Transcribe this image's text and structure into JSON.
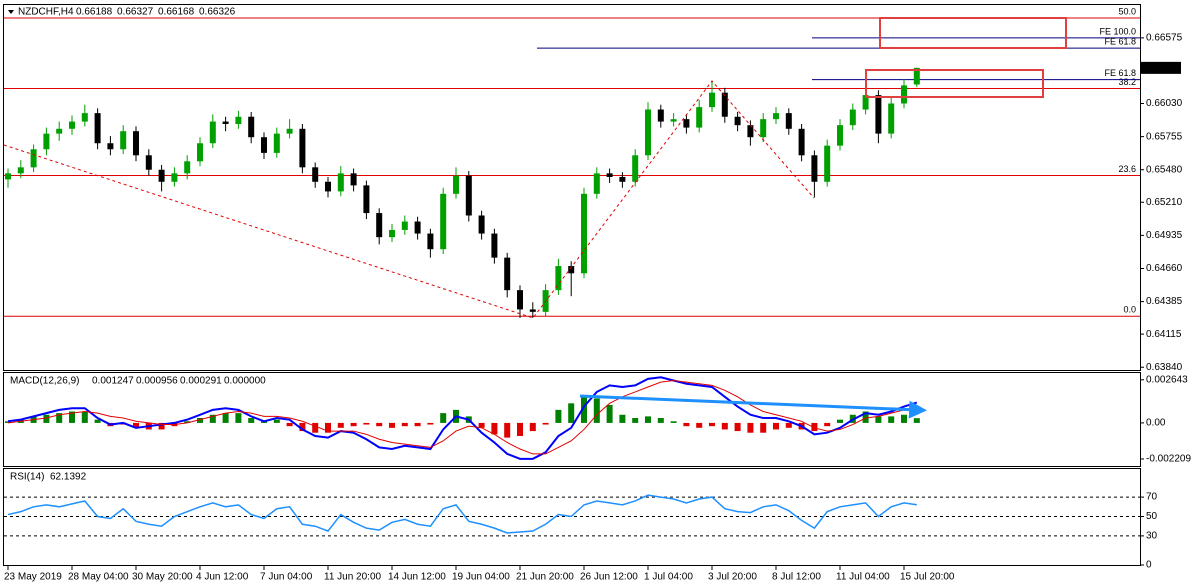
{
  "chart_data": [
    {
      "type": "candlestick",
      "title": "NZDCHF,H4",
      "categories": [
        "23 May 2019",
        null,
        null,
        null,
        null,
        "28 May 04:00",
        null,
        null,
        null,
        null,
        "30 May 20:00",
        null,
        null,
        null,
        null,
        "4 Jun 12:00",
        null,
        null,
        null,
        null,
        "7 Jun 04:00",
        null,
        null,
        null,
        null,
        "11 Jun 20:00",
        null,
        null,
        null,
        null,
        "14 Jun 12:00",
        null,
        null,
        null,
        null,
        "19 Jun 04:00",
        null,
        null,
        null,
        null,
        "21 Jun 20:00",
        null,
        null,
        null,
        null,
        "26 Jun 12:00",
        null,
        null,
        null,
        null,
        "1 Jul 04:00",
        null,
        null,
        null,
        null,
        "3 Jul 20:00",
        null,
        null,
        null,
        null,
        "8 Jul 12:00",
        null,
        null,
        null,
        null,
        "11 Jul 04:00",
        null,
        null,
        null,
        null,
        "15 Jul 20:00",
        null
      ],
      "ohlc": [
        [
          0.654,
          0.6549,
          0.6533,
          0.6545
        ],
        [
          0.6545,
          0.6556,
          0.6541,
          0.655
        ],
        [
          0.655,
          0.6569,
          0.6546,
          0.6565
        ],
        [
          0.6565,
          0.6583,
          0.656,
          0.6578
        ],
        [
          0.6578,
          0.6588,
          0.6572,
          0.6582
        ],
        [
          0.6582,
          0.6593,
          0.6577,
          0.6588
        ],
        [
          0.6588,
          0.6602,
          0.6584,
          0.6595
        ],
        [
          0.6595,
          0.6599,
          0.6565,
          0.657
        ],
        [
          0.657,
          0.6576,
          0.656,
          0.6565
        ],
        [
          0.6565,
          0.6585,
          0.6561,
          0.658
        ],
        [
          0.658,
          0.6584,
          0.6555,
          0.656
        ],
        [
          0.656,
          0.6565,
          0.6543,
          0.6548
        ],
        [
          0.6548,
          0.6552,
          0.653,
          0.6538
        ],
        [
          0.6538,
          0.655,
          0.6534,
          0.6545
        ],
        [
          0.6545,
          0.656,
          0.654,
          0.6555
        ],
        [
          0.6555,
          0.6575,
          0.6551,
          0.657
        ],
        [
          0.657,
          0.6594,
          0.6566,
          0.6588
        ],
        [
          0.6588,
          0.6592,
          0.658,
          0.6586
        ],
        [
          0.6586,
          0.6597,
          0.6582,
          0.6592
        ],
        [
          0.6592,
          0.6596,
          0.657,
          0.6575
        ],
        [
          0.6575,
          0.6579,
          0.6557,
          0.6562
        ],
        [
          0.6562,
          0.6583,
          0.6558,
          0.6578
        ],
        [
          0.6578,
          0.659,
          0.6574,
          0.6582
        ],
        [
          0.6582,
          0.6586,
          0.6545,
          0.655
        ],
        [
          0.655,
          0.6554,
          0.6533,
          0.6538
        ],
        [
          0.6538,
          0.6542,
          0.6525,
          0.653
        ],
        [
          0.653,
          0.6551,
          0.6526,
          0.6545
        ],
        [
          0.6545,
          0.6549,
          0.653,
          0.6535
        ],
        [
          0.6535,
          0.6539,
          0.6507,
          0.6512
        ],
        [
          0.6512,
          0.6516,
          0.6486,
          0.6492
        ],
        [
          0.6492,
          0.6503,
          0.6488,
          0.6498
        ],
        [
          0.6498,
          0.651,
          0.6494,
          0.6505
        ],
        [
          0.6505,
          0.6509,
          0.649,
          0.6495
        ],
        [
          0.6495,
          0.6499,
          0.6475,
          0.6482
        ],
        [
          0.6482,
          0.6533,
          0.6478,
          0.6528
        ],
        [
          0.6528,
          0.655,
          0.6524,
          0.6543
        ],
        [
          0.6543,
          0.6547,
          0.6505,
          0.651
        ],
        [
          0.651,
          0.6514,
          0.649,
          0.6495
        ],
        [
          0.6495,
          0.6499,
          0.647,
          0.6475
        ],
        [
          0.6475,
          0.6479,
          0.6442,
          0.6448
        ],
        [
          0.6448,
          0.6452,
          0.6425,
          0.6432
        ],
        [
          0.6432,
          0.6438,
          0.6425,
          0.643
        ],
        [
          0.643,
          0.6453,
          0.6426,
          0.6448
        ],
        [
          0.6448,
          0.6474,
          0.6444,
          0.6468
        ],
        [
          0.6468,
          0.6472,
          0.6443,
          0.6462
        ],
        [
          0.6462,
          0.6533,
          0.6458,
          0.6528
        ],
        [
          0.6528,
          0.655,
          0.6524,
          0.6545
        ],
        [
          0.6545,
          0.6549,
          0.6537,
          0.6542
        ],
        [
          0.6542,
          0.6546,
          0.6533,
          0.6538
        ],
        [
          0.6538,
          0.6565,
          0.6534,
          0.656
        ],
        [
          0.656,
          0.6604,
          0.6556,
          0.6598
        ],
        [
          0.6598,
          0.6602,
          0.6583,
          0.6588
        ],
        [
          0.6588,
          0.6595,
          0.6584,
          0.659
        ],
        [
          0.659,
          0.6594,
          0.6578,
          0.6583
        ],
        [
          0.6583,
          0.6606,
          0.6579,
          0.66
        ],
        [
          0.66,
          0.6622,
          0.6596,
          0.6612
        ],
        [
          0.6612,
          0.6616,
          0.6587,
          0.6592
        ],
        [
          0.6592,
          0.6596,
          0.658,
          0.6585
        ],
        [
          0.6585,
          0.6589,
          0.6568,
          0.6575
        ],
        [
          0.6575,
          0.6595,
          0.6571,
          0.659
        ],
        [
          0.659,
          0.66,
          0.6586,
          0.6595
        ],
        [
          0.6595,
          0.6599,
          0.6577,
          0.6582
        ],
        [
          0.6582,
          0.6586,
          0.6555,
          0.656
        ],
        [
          0.656,
          0.6564,
          0.6525,
          0.6538
        ],
        [
          0.6538,
          0.6573,
          0.6534,
          0.6568
        ],
        [
          0.6568,
          0.659,
          0.6564,
          0.6585
        ],
        [
          0.6585,
          0.6603,
          0.6581,
          0.6598
        ],
        [
          0.6598,
          0.6615,
          0.6594,
          0.661
        ],
        [
          0.661,
          0.6614,
          0.657,
          0.6578
        ],
        [
          0.6578,
          0.6608,
          0.6574,
          0.6603
        ],
        [
          0.6603,
          0.6623,
          0.6599,
          0.6618
        ],
        [
          0.66188,
          0.66327,
          0.66168,
          0.66326
        ]
      ],
      "up_color": "#00a000",
      "down_color": "#000000",
      "ylim": [
        0.63817,
        0.66848
      ],
      "yticks": [
        0.66575,
        {
          "value": 0.6603,
          "label": "0.66030"
        },
        0.65755,
        {
          "value": 0.6548,
          "label": "0.65480"
        },
        {
          "value": 0.6521,
          "label": "0.65210"
        },
        0.64935,
        {
          "value": 0.6466,
          "label": "0.64660"
        },
        0.64385,
        0.64115,
        {
          "value": 0.6384,
          "label": "0.63840"
        }
      ],
      "grid": false,
      "fib_color": "#e00000",
      "fib_levels": [
        {
          "price": 0.6674,
          "label": "50.0"
        },
        {
          "price": 0.66155,
          "label": "38.2"
        },
        {
          "price": 0.65432,
          "label": "23.6"
        },
        {
          "price": 0.64263,
          "label": "0.0"
        }
      ],
      "fe_color": "#000080",
      "fe_levels": [
        {
          "price": 0.66575,
          "label": "FE 100.0"
        },
        {
          "price": 0.6649,
          "label": "FE 61.8"
        },
        {
          "price": 0.66228,
          "label": "FE 61.8"
        }
      ]
    },
    {
      "type": "macd",
      "title": "MACD(12,26,9)",
      "header_values": [
        0.001247,
        0.000956,
        0.000291,
        {
          "value": 0,
          "label": "0.000000"
        }
      ],
      "series": [
        {
          "kind": "bar",
          "color": "#008000",
          "negative_color": "#e00000",
          "values": [
            0.0001,
            0.0002,
            0.0004,
            0.0005,
            0.0006,
            0.0007,
            0.0007,
            0.0002,
            -0.0002,
            -0.0001,
            -0.0003,
            -0.0004,
            -0.0004,
            -0.0002,
            0.0001,
            0.0003,
            0.0005,
            0.0006,
            0.0006,
            0.0003,
            0.0001,
            0.0002,
            -0.0002,
            -0.0005,
            -0.0006,
            -0.0006,
            -0.0003,
            -0.0002,
            -0.0001,
            -0.0002,
            -0.0003,
            -0.0002,
            -0.0002,
            -0.0001,
            0.0006,
            0.0008,
            0.0004,
            -0.0003,
            -0.0007,
            -0.0009,
            -0.0008,
            -0.0005,
            -0.0001,
            0.0008,
            0.0012,
            0.0016,
            0.0015,
            0.0011,
            0.0005,
            0.0003,
            0.0004,
            0.0003,
            0.0001,
            -0.0002,
            -0.0003,
            -0.0002,
            -0.0004,
            -0.0005,
            -0.0006,
            -0.0006,
            -0.0004,
            -0.0003,
            -0.0004,
            -0.0005,
            -0.0002,
            0.0002,
            0.0005,
            0.0007,
            0.0004,
            0.0004,
            0.0005,
            0.000291
          ]
        },
        {
          "kind": "line",
          "color": "#0000ff",
          "values": [
            0.0001,
            0.0002,
            0.0004,
            0.0006,
            0.0008,
            0.0009,
            0.0009,
            0.0003,
            -0.0001,
            0.0,
            -0.0003,
            -0.0002,
            -0.0001,
            0.0,
            0.0002,
            0.0005,
            0.0008,
            0.0009,
            0.0008,
            0.0004,
            0.0001,
            0.0003,
            0.0002,
            -0.0004,
            -0.0008,
            -0.0009,
            -0.0005,
            -0.0006,
            -0.001,
            -0.0015,
            -0.0016,
            -0.0014,
            -0.0015,
            -0.0016,
            -0.0004,
            0.0004,
            0.0002,
            -0.0006,
            -0.0012,
            -0.0019,
            -0.0022,
            -0.0022,
            -0.0018,
            -0.0008,
            -0.0003,
            0.001,
            0.0019,
            0.0023,
            0.0022,
            0.0023,
            0.0027,
            0.0028,
            0.0026,
            0.0024,
            0.0023,
            0.0022,
            0.0016,
            0.001,
            0.0005,
            0.0003,
            0.0003,
            0.0001,
            -0.0002,
            -0.0007,
            -0.0006,
            -0.0003,
            0.0002,
            0.0006,
            0.0005,
            0.0007,
            0.001,
            0.001247
          ]
        },
        {
          "kind": "line",
          "color": "#e00000",
          "values": [
            0.0,
            0.0001,
            0.0002,
            0.0003,
            0.0005,
            0.0006,
            0.0007,
            0.0006,
            0.0004,
            0.0003,
            0.0001,
            0.0,
            -0.0001,
            -0.0001,
            0.0,
            0.0002,
            0.0004,
            0.0006,
            0.0007,
            0.0006,
            0.0004,
            0.0004,
            0.0003,
            0.0001,
            -0.0002,
            -0.0005,
            -0.0005,
            -0.0005,
            -0.0007,
            -0.001,
            -0.0012,
            -0.0013,
            -0.0014,
            -0.0015,
            -0.0011,
            -0.0005,
            -0.0002,
            -0.0003,
            -0.0007,
            -0.0012,
            -0.0016,
            -0.0019,
            -0.0019,
            -0.0015,
            -0.0011,
            -0.0004,
            0.0005,
            0.0012,
            0.0016,
            0.0019,
            0.0022,
            0.0025,
            0.0026,
            0.0025,
            0.0024,
            0.0023,
            0.002,
            0.0016,
            0.0011,
            0.0007,
            0.0005,
            0.0003,
            0.0001,
            -0.0003,
            -0.0005,
            -0.0004,
            -0.0001,
            0.0003,
            0.0004,
            0.0006,
            0.0008,
            0.000956
          ]
        }
      ],
      "ylim": [
        -0.00264,
        0.00312
      ],
      "yticks": [
        0.002643,
        {
          "value": 0,
          "label": "0.00"
        },
        -0.002209
      ]
    },
    {
      "type": "line",
      "title": "RSI(14)",
      "series": [
        {
          "color": "#1e90ff",
          "values": [
            52,
            55,
            60,
            62,
            60,
            63,
            66,
            50,
            48,
            58,
            45,
            42,
            40,
            50,
            55,
            60,
            64,
            60,
            62,
            52,
            48,
            58,
            60,
            42,
            40,
            35,
            52,
            44,
            38,
            36,
            44,
            47,
            42,
            40,
            58,
            62,
            45,
            42,
            38,
            33,
            34,
            35,
            42,
            52,
            50,
            62,
            66,
            64,
            62,
            66,
            72,
            70,
            68,
            64,
            68,
            70,
            58,
            55,
            54,
            60,
            62,
            56,
            46,
            38,
            55,
            60,
            62,
            64,
            50,
            60,
            64,
            62.1392
          ]
        }
      ],
      "ylim": [
        0,
        100
      ],
      "yticks": [
        70,
        50,
        30,
        0
      ],
      "levels": [
        70,
        50,
        30
      ],
      "level_color": "#000000"
    }
  ]
}
